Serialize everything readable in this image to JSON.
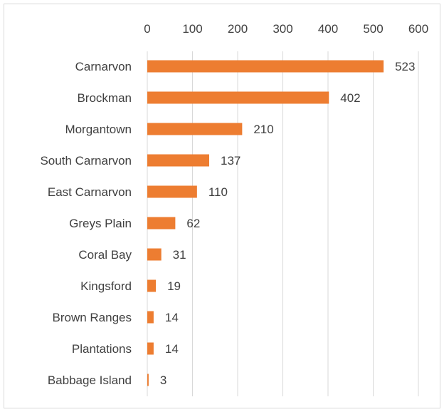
{
  "chart_data": {
    "type": "bar",
    "orientation": "horizontal",
    "categories": [
      "Carnarvon",
      "Brockman",
      "Morgantown",
      "South Carnarvon",
      "East Carnarvon",
      "Greys Plain",
      "Coral Bay",
      "Kingsford",
      "Brown Ranges",
      "Plantations",
      "Babbage Island"
    ],
    "values": [
      523,
      402,
      210,
      137,
      110,
      62,
      31,
      19,
      14,
      14,
      3
    ],
    "xlim": [
      0,
      600
    ],
    "xticks": [
      0,
      100,
      200,
      300,
      400,
      500,
      600
    ],
    "x_axis_position": "top",
    "grid": "vertical",
    "legend": "none",
    "title": "",
    "xlabel": "",
    "ylabel": "",
    "colors": {
      "bar": "#ED7D31",
      "grid": "#d9d9d9",
      "text": "#404040"
    }
  }
}
